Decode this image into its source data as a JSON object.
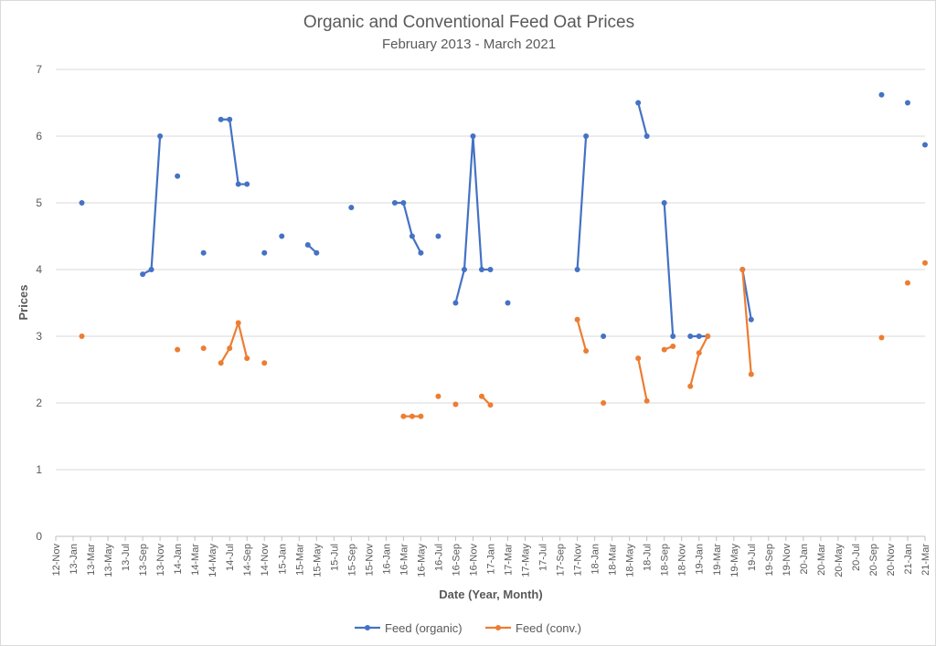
{
  "chart_data": {
    "type": "line",
    "title": "Organic and Conventional Feed Oat Prices",
    "subtitle": "February 2013 - March 2021",
    "xlabel": "Date (Year, Month)",
    "ylabel": "Prices",
    "ylim": [
      0,
      7
    ],
    "yticks": [
      0,
      1,
      2,
      3,
      4,
      5,
      6,
      7
    ],
    "grid": true,
    "legend_position": "bottom",
    "x_tick_labels": [
      "12-Nov",
      "13-Jan",
      "13-Mar",
      "13-May",
      "13-Jul",
      "13-Sep",
      "13-Nov",
      "14-Jan",
      "14-Mar",
      "14-May",
      "14-Jul",
      "14-Sep",
      "14-Nov",
      "15-Jan",
      "15-Mar",
      "15-May",
      "15-Jul",
      "15-Sep",
      "15-Nov",
      "16-Jan",
      "16-Mar",
      "16-May",
      "16-Jul",
      "16-Sep",
      "16-Nov",
      "17-Jan",
      "17-Mar",
      "17-May",
      "17-Jul",
      "17-Sep",
      "17-Nov",
      "18-Jan",
      "18-Mar",
      "18-May",
      "18-Jul",
      "18-Sep",
      "18-Nov",
      "19-Jan",
      "19-Mar",
      "19-May",
      "19-Jul",
      "19-Sep",
      "19-Nov",
      "20-Jan",
      "20-Mar",
      "20-May",
      "20-Jul",
      "20-Sep",
      "20-Nov",
      "21-Jan",
      "21-Mar"
    ],
    "series": [
      {
        "name": "Feed (organic)",
        "color": "#4472C4",
        "points": [
          {
            "x": "2013-02",
            "y": 5.0
          },
          {
            "x": "2013-09",
            "y": 3.93
          },
          {
            "x": "2013-10",
            "y": 4.0
          },
          {
            "x": "2013-11",
            "y": 6.0
          },
          {
            "x": "2014-01",
            "y": 5.4
          },
          {
            "x": "2014-04",
            "y": 4.25
          },
          {
            "x": "2014-06",
            "y": 6.25
          },
          {
            "x": "2014-07",
            "y": 6.25
          },
          {
            "x": "2014-08",
            "y": 5.28
          },
          {
            "x": "2014-09",
            "y": 5.28
          },
          {
            "x": "2014-11",
            "y": 4.25
          },
          {
            "x": "2015-01",
            "y": 4.5
          },
          {
            "x": "2015-04",
            "y": 4.37
          },
          {
            "x": "2015-05",
            "y": 4.25
          },
          {
            "x": "2015-09",
            "y": 4.93
          },
          {
            "x": "2016-02",
            "y": 5.0
          },
          {
            "x": "2016-03",
            "y": 5.0
          },
          {
            "x": "2016-04",
            "y": 4.5
          },
          {
            "x": "2016-05",
            "y": 4.25
          },
          {
            "x": "2016-07",
            "y": 4.5
          },
          {
            "x": "2016-09",
            "y": 3.5
          },
          {
            "x": "2016-10",
            "y": 4.0
          },
          {
            "x": "2016-11",
            "y": 6.0
          },
          {
            "x": "2016-12",
            "y": 4.0
          },
          {
            "x": "2017-01",
            "y": 4.0
          },
          {
            "x": "2017-03",
            "y": 3.5
          },
          {
            "x": "2017-11",
            "y": 4.0
          },
          {
            "x": "2017-12",
            "y": 6.0
          },
          {
            "x": "2018-02",
            "y": 3.0
          },
          {
            "x": "2018-06",
            "y": 6.5
          },
          {
            "x": "2018-07",
            "y": 6.0
          },
          {
            "x": "2018-09",
            "y": 5.0
          },
          {
            "x": "2018-10",
            "y": 3.0
          },
          {
            "x": "2018-12",
            "y": 3.0
          },
          {
            "x": "2019-01",
            "y": 3.0
          },
          {
            "x": "2019-02",
            "y": 3.0
          },
          {
            "x": "2019-06",
            "y": 4.0
          },
          {
            "x": "2019-07",
            "y": 3.25
          },
          {
            "x": "2020-10",
            "y": 6.62
          },
          {
            "x": "2021-01",
            "y": 6.5
          },
          {
            "x": "2021-03",
            "y": 5.87
          }
        ]
      },
      {
        "name": "Feed (conv.)",
        "color": "#ED7D31",
        "points": [
          {
            "x": "2013-02",
            "y": 3.0
          },
          {
            "x": "2014-01",
            "y": 2.8
          },
          {
            "x": "2014-04",
            "y": 2.82
          },
          {
            "x": "2014-06",
            "y": 2.6
          },
          {
            "x": "2014-07",
            "y": 2.82
          },
          {
            "x": "2014-08",
            "y": 3.2
          },
          {
            "x": "2014-09",
            "y": 2.67
          },
          {
            "x": "2014-11",
            "y": 2.6
          },
          {
            "x": "2016-03",
            "y": 1.8
          },
          {
            "x": "2016-04",
            "y": 1.8
          },
          {
            "x": "2016-05",
            "y": 1.8
          },
          {
            "x": "2016-07",
            "y": 2.1
          },
          {
            "x": "2016-09",
            "y": 1.98
          },
          {
            "x": "2016-12",
            "y": 2.1
          },
          {
            "x": "2017-01",
            "y": 1.97
          },
          {
            "x": "2017-11",
            "y": 3.25
          },
          {
            "x": "2017-12",
            "y": 2.78
          },
          {
            "x": "2018-02",
            "y": 2.0
          },
          {
            "x": "2018-06",
            "y": 2.67
          },
          {
            "x": "2018-07",
            "y": 2.03
          },
          {
            "x": "2018-09",
            "y": 2.8
          },
          {
            "x": "2018-10",
            "y": 2.85
          },
          {
            "x": "2018-12",
            "y": 2.25
          },
          {
            "x": "2019-01",
            "y": 2.75
          },
          {
            "x": "2019-02",
            "y": 3.0
          },
          {
            "x": "2019-06",
            "y": 4.0
          },
          {
            "x": "2019-07",
            "y": 2.43
          },
          {
            "x": "2020-10",
            "y": 2.98
          },
          {
            "x": "2021-01",
            "y": 3.8
          },
          {
            "x": "2021-03",
            "y": 4.1
          }
        ]
      }
    ]
  }
}
